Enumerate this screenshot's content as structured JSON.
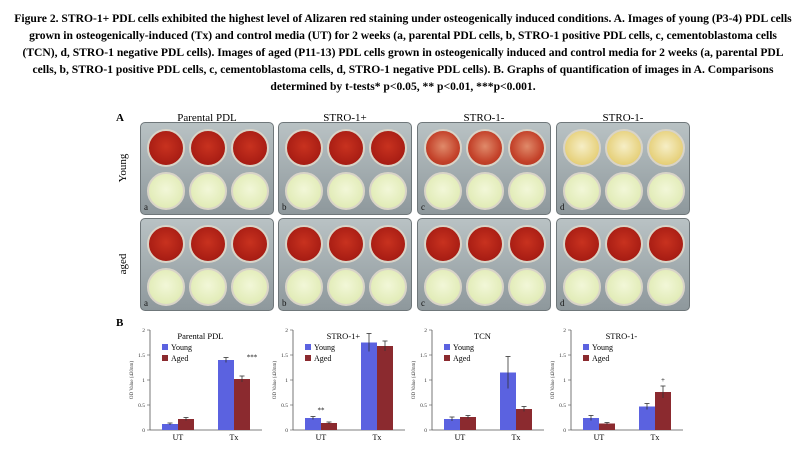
{
  "caption": "Figure 2. STRO-1+ PDL cells exhibited the highest level of Alizaren red staining under osteogenically induced conditions. A. Images of young (P3-4) PDL cells grown in osteogenically-induced (Tx) and control media (UT) for 2 weeks (a, parental PDL cells, b, STRO-1 positive PDL cells, c, cementoblastoma cells (TCN), d, STRO-1 negative PDL cells). Images of aged (P11-13) PDL cells grown in osteogenically induced and control media for 2 weeks (a, parental PDL cells, b, STRO-1 positive PDL cells, c, cementoblastoma cells, d, STRO-1 negative PDL cells). B. Graphs of quantification of images in A. Comparisons determined by t-tests* p<0.05, ** p<0.01, ***p<0.001.",
  "panel_a_label": "A",
  "panel_b_label": "B",
  "column_titles": [
    "Parental PDL",
    "STRO-1+",
    "STRO-1-",
    "STRO-1-"
  ],
  "row_labels": [
    "Young",
    "aged"
  ],
  "plate_letters": [
    "a",
    "b",
    "c",
    "d"
  ],
  "colors": {
    "young_bar": "#5b62e0",
    "aged_bar": "#8b2a2f",
    "stain_red": "#b8241c",
    "stain_red_light": "#d96a4a",
    "stain_yellow": "#e8d98a",
    "control_well": "#e6efc0"
  },
  "plates": [
    {
      "row": "young",
      "col": 0,
      "top_wells": "red",
      "bottom_wells": "control"
    },
    {
      "row": "young",
      "col": 1,
      "top_wells": "red",
      "bottom_wells": "control"
    },
    {
      "row": "young",
      "col": 2,
      "top_wells": "red_light",
      "bottom_wells": "control"
    },
    {
      "row": "young",
      "col": 3,
      "top_wells": "yellow",
      "bottom_wells": "control"
    },
    {
      "row": "aged",
      "col": 0,
      "top_wells": "red",
      "bottom_wells": "control"
    },
    {
      "row": "aged",
      "col": 1,
      "top_wells": "red",
      "bottom_wells": "control"
    },
    {
      "row": "aged",
      "col": 2,
      "top_wells": "red",
      "bottom_wells": "control"
    },
    {
      "row": "aged",
      "col": 3,
      "top_wells": "red",
      "bottom_wells": "control"
    }
  ],
  "chart_data": [
    {
      "type": "bar",
      "title": "Parental PDL",
      "ylabel": "OD Value (420nm)",
      "categories": [
        "UT",
        "Tx"
      ],
      "ylim": [
        0,
        2.0
      ],
      "series": [
        {
          "name": "Young",
          "values": [
            0.12,
            1.4
          ],
          "errors": [
            0.02,
            0.05
          ]
        },
        {
          "name": "Aged",
          "values": [
            0.22,
            1.02
          ],
          "errors": [
            0.03,
            0.06
          ]
        }
      ],
      "annotations": [
        {
          "category": "Tx",
          "text": "***"
        }
      ]
    },
    {
      "type": "bar",
      "title": "STRO-1+",
      "ylabel": "OD Value (420nm)",
      "categories": [
        "UT",
        "Tx"
      ],
      "ylim": [
        0,
        2.0
      ],
      "series": [
        {
          "name": "Young",
          "values": [
            0.24,
            1.75
          ],
          "errors": [
            0.03,
            0.18
          ]
        },
        {
          "name": "Aged",
          "values": [
            0.14,
            1.68
          ],
          "errors": [
            0.02,
            0.1
          ]
        }
      ],
      "annotations": [
        {
          "category": "UT",
          "text": "**"
        }
      ]
    },
    {
      "type": "bar",
      "title": "TCN",
      "ylabel": "OD Value (420nm)",
      "categories": [
        "UT",
        "Tx"
      ],
      "ylim": [
        0,
        2.0
      ],
      "series": [
        {
          "name": "Young",
          "values": [
            0.22,
            1.15
          ],
          "errors": [
            0.04,
            0.32
          ]
        },
        {
          "name": "Aged",
          "values": [
            0.26,
            0.42
          ],
          "errors": [
            0.03,
            0.05
          ]
        }
      ],
      "annotations": []
    },
    {
      "type": "bar",
      "title": "STRO-1-",
      "ylabel": "OD Value (420nm)",
      "categories": [
        "UT",
        "Tx"
      ],
      "ylim": [
        0,
        2.0
      ],
      "series": [
        {
          "name": "Young",
          "values": [
            0.24,
            0.47
          ],
          "errors": [
            0.05,
            0.06
          ]
        },
        {
          "name": "Aged",
          "values": [
            0.13,
            0.76
          ],
          "errors": [
            0.02,
            0.12
          ]
        }
      ],
      "annotations": [
        {
          "category": "Tx",
          "text": "+"
        }
      ]
    }
  ]
}
